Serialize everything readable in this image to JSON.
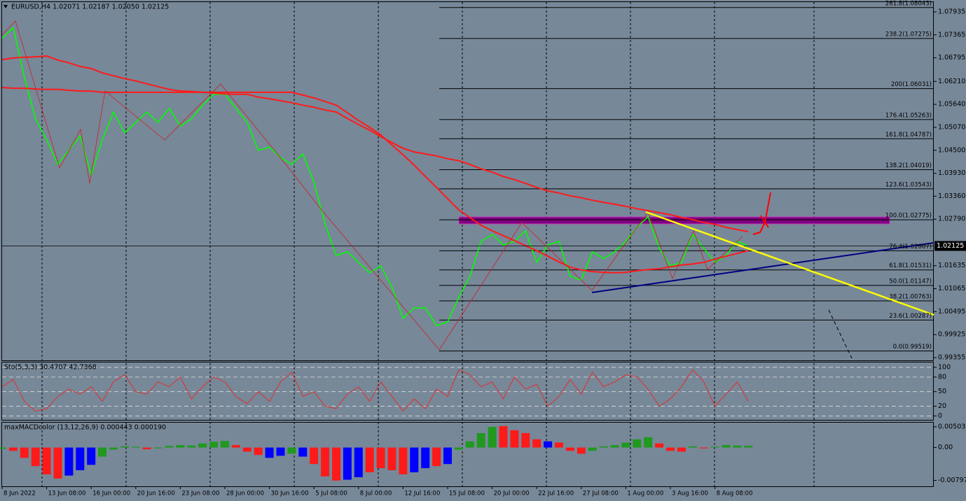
{
  "chart_data": [
    {
      "type": "line",
      "title": "EURUSD,H4  1.02071 1.02187 1.02050 1.02125",
      "categories": [
        "8 Jun 2022",
        null,
        null,
        null,
        "13 Jun 08:00",
        null,
        null,
        null,
        "16 Jun 00:00",
        null,
        null,
        null,
        "20 Jun 16:00",
        null,
        null,
        null,
        "23 Jun 08:00",
        null,
        null,
        null,
        "28 Jun 00:00",
        null,
        null,
        null,
        "30 Jun 16:00",
        null,
        null,
        null,
        "5 Jul 08:00",
        null,
        null,
        null,
        "8 Jul 00:00",
        null,
        null,
        null,
        "12 Jul 16:00",
        null,
        null,
        null,
        "15 Jul 08:00",
        null,
        null,
        null,
        "20 Jul 00:00",
        null,
        null,
        null,
        "22 Jul 16:00",
        null,
        null,
        null,
        "27 Jul 08:00",
        null,
        null,
        null,
        "1 Aug 00:00",
        null,
        null,
        null,
        "3 Aug 16:00",
        null,
        null,
        null,
        "8 Aug 08:00",
        null,
        null,
        null
      ],
      "series": [
        {
          "color": "#00ff00",
          "values": [
            1.0728,
            1.0754,
            1.0632,
            1.0528,
            1.0476,
            1.0415,
            1.045,
            1.0485,
            1.0389,
            1.0476,
            1.0545,
            1.0493,
            1.0519,
            1.0545,
            1.0519,
            1.0554,
            1.051,
            1.0528,
            1.0562,
            1.0589,
            1.0589,
            1.0554,
            1.0519,
            1.045,
            1.0458,
            1.0432,
            1.0415,
            1.0441,
            1.0371,
            1.0267,
            1.0189,
            1.0198,
            1.0172,
            1.0146,
            1.0163,
            1.0111,
            1.0033,
            1.0059,
            1.0059,
            1.0015,
            1.0024,
            1.0085,
            1.0137,
            1.0224,
            1.0241,
            1.0215,
            1.0224,
            1.025,
            1.0172,
            1.0215,
            1.0224,
            1.0137,
            1.0128,
            1.0198,
            1.0181,
            1.0198,
            1.0224,
            1.0259,
            1.0285,
            1.0207,
            1.0163,
            1.0172,
            1.0241,
            1.0207,
            1.0172,
            1.0189,
            1.0224,
            1.0212
          ]
        },
        {
          "color": "#ff1a1a",
          "values": [
            1.0675,
            1.0679,
            1.0681,
            1.0682,
            1.0684,
            1.0674,
            1.0667,
            1.0658,
            1.0653,
            1.0642,
            1.0635,
            1.0628,
            1.0622,
            1.0615,
            1.0608,
            1.0601,
            1.0597,
            1.0596,
            1.0594,
            1.0592,
            1.059,
            1.0589,
            1.0589,
            1.0582,
            1.0578,
            1.0573,
            1.0568,
            1.0562,
            1.0557,
            1.055,
            1.0545,
            1.0529,
            1.0514,
            1.05,
            1.0484,
            1.0469,
            1.0455,
            1.0446,
            1.0441,
            1.0436,
            1.0429,
            1.0424,
            1.0415,
            1.0404,
            1.0396,
            1.0385,
            1.0377,
            1.0368,
            1.0358,
            1.0349,
            1.0344,
            1.0337,
            1.0332,
            1.0326,
            1.0321,
            1.0316,
            1.0311,
            1.0305,
            1.03,
            1.0295,
            1.029,
            1.0283,
            1.0278,
            1.0271,
            1.0266,
            1.0259,
            1.0253,
            1.0248
          ]
        },
        {
          "color": "#ff1a1a",
          "values": [
            1.0606,
            1.0604,
            1.0604,
            1.0602,
            1.0601,
            1.0601,
            1.0599,
            1.0597,
            1.0597,
            1.0594,
            1.0594,
            1.0594,
            1.0594,
            1.0594,
            1.0594,
            1.0594,
            1.0594,
            1.0594,
            1.0594,
            1.0594,
            1.0594,
            1.0594,
            1.0594,
            1.0594,
            1.0594,
            1.0594,
            1.0594,
            1.0587,
            1.058,
            1.0571,
            1.0562,
            1.0543,
            1.0524,
            1.0507,
            1.0488,
            1.0463,
            1.0439,
            1.0413,
            1.0385,
            1.0358,
            1.033,
            1.0302,
            1.0283,
            1.0264,
            1.025,
            1.0238,
            1.0226,
            1.0213,
            1.0201,
            1.0187,
            1.0173,
            1.016,
            1.0153,
            1.0149,
            1.0147,
            1.0146,
            1.0147,
            1.0151,
            1.0154,
            1.0156,
            1.0161,
            1.0165,
            1.0168,
            1.0172,
            1.018,
            1.0187,
            1.0194,
            1.0201
          ]
        }
      ],
      "ylim": [
        0.99286,
        1.08178
      ],
      "yticks": [
        1.07935,
        1.07365,
        1.06795,
        {
          "value": 1.0621,
          "label": "1.06210"
        },
        {
          "value": 1.0564,
          "label": "1.05640"
        },
        {
          "value": 1.0507,
          "label": "1.05070"
        },
        {
          "value": 1.045,
          "label": "1.04500"
        },
        {
          "value": 1.0393,
          "label": "1.03930"
        },
        {
          "value": 1.0336,
          "label": "1.03360"
        },
        {
          "value": 1.0279,
          "label": "1.02790"
        },
        1.01635,
        1.01065,
        1.00495,
        0.99925,
        0.99355
      ],
      "grid": false,
      "current_price": 1.02125,
      "fib_levels": [
        {
          "value": 1.08043,
          "label": "261.8(1.08043)"
        },
        {
          "value": 1.07275,
          "label": "238.2(1.07275)"
        },
        {
          "value": 1.06031,
          "label": "200(1.06031)"
        },
        {
          "value": 1.05263,
          "label": "176.4(1.05263)"
        },
        {
          "value": 1.04787,
          "label": "161.8(1.04787)"
        },
        {
          "value": 1.04019,
          "label": "138.2(1.04019)"
        },
        {
          "value": 1.03543,
          "label": "123.6(1.03543)"
        },
        {
          "value": 1.02775,
          "label": "100.0(1.02775)"
        },
        {
          "value": 1.02007,
          "label": "76.4(1.02007)"
        },
        {
          "value": 1.01531,
          "label": "61.8(1.01531)"
        },
        {
          "value": 1.01147,
          "label": "50.0(1.01147)"
        },
        {
          "value": 1.00763,
          "label": "38.2(1.00763)"
        },
        {
          "value": 1.00287,
          "label": "23.6(1.00287)"
        },
        {
          "value": 0.99519,
          "label": "0.0(0.99519)"
        }
      ]
    },
    {
      "type": "line",
      "title": "Sto(5,3,3) 30.4707 42.7368",
      "color": "#e0302b",
      "values": [
        60,
        75,
        30,
        10,
        15,
        40,
        55,
        45,
        60,
        30,
        70,
        85,
        50,
        45,
        70,
        60,
        80,
        35,
        60,
        80,
        70,
        40,
        25,
        50,
        30,
        70,
        90,
        40,
        50,
        20,
        15,
        45,
        60,
        30,
        70,
        40,
        10,
        35,
        15,
        55,
        40,
        95,
        85,
        60,
        70,
        35,
        80,
        55,
        65,
        20,
        40,
        75,
        45,
        90,
        60,
        70,
        85,
        80,
        55,
        20,
        35,
        60,
        95,
        70,
        20,
        45,
        70,
        30
      ],
      "ylim": [
        -8,
        110
      ],
      "yticks": [
        100,
        80,
        50,
        20,
        0
      ],
      "grid": true
    },
    {
      "type": "bar",
      "title": "maxMACDcolor (13,12,26,9) 0.000443 0.000190",
      "values": [
        -0.0003,
        -0.0008,
        -0.0025,
        -0.0045,
        -0.0065,
        -0.0075,
        -0.0068,
        -0.0055,
        -0.0042,
        -0.0022,
        -0.0005,
        0.0003,
        0.0002,
        -0.0004,
        -0.0002,
        0.0004,
        0.0006,
        0.0005,
        0.001,
        0.0014,
        0.0016,
        0.0006,
        -0.001,
        -0.0018,
        -0.0025,
        -0.002,
        -0.0015,
        -0.0022,
        -0.004,
        -0.007,
        -0.008,
        -0.0078,
        -0.0072,
        -0.006,
        -0.005,
        -0.0055,
        -0.0065,
        -0.006,
        -0.005,
        -0.0045,
        -0.004,
        -0.0005,
        0.0015,
        0.0035,
        0.005,
        0.0052,
        0.0042,
        0.0035,
        0.002,
        0.0015,
        0.0012,
        -0.0008,
        -0.0015,
        -0.0008,
        0.0003,
        0.0006,
        0.0012,
        0.002,
        0.0025,
        0.001,
        -0.0008,
        -0.001,
        0.0003,
        -0.0002,
        0.0002,
        0.0006,
        0.0005,
        0.000443
      ],
      "colors": [
        "#1f9a1f",
        "#ff1a1a",
        "#ff1a1a",
        "#ff1a1a",
        "#ff1a1a",
        "#ff1a1a",
        "#0000ff",
        "#0000ff",
        "#0000ff",
        "#1f9a1f",
        "#1f9a1f",
        "#1f9a1f",
        "#1f9a1f",
        "#ff1a1a",
        "#1f9a1f",
        "#1f9a1f",
        "#1f9a1f",
        "#1f9a1f",
        "#1f9a1f",
        "#1f9a1f",
        "#1f9a1f",
        "#ff1a1a",
        "#ff1a1a",
        "#ff1a1a",
        "#0000ff",
        "#0000ff",
        "#1f9a1f",
        "#0000ff",
        "#ff1a1a",
        "#ff1a1a",
        "#ff1a1a",
        "#0000ff",
        "#0000ff",
        "#ff1a1a",
        "#ff1a1a",
        "#ff1a1a",
        "#ff1a1a",
        "#0000ff",
        "#0000ff",
        "#ff1a1a",
        "#0000ff",
        "#1f9a1f",
        "#1f9a1f",
        "#1f9a1f",
        "#1f9a1f",
        "#ff1a1a",
        "#ff1a1a",
        "#ff1a1a",
        "#ff1a1a",
        "#0000ff",
        "#ff1a1a",
        "#ff1a1a",
        "#ff1a1a",
        "#1f9a1f",
        "#1f9a1f",
        "#1f9a1f",
        "#1f9a1f",
        "#1f9a1f",
        "#1f9a1f",
        "#ff1a1a",
        "#ff1a1a",
        "#ff1a1a",
        "#1f9a1f",
        "#ff1a1a",
        "#1f9a1f",
        "#1f9a1f",
        "#1f9a1f",
        "#1f9a1f"
      ],
      "ylim": [
        -0.0094,
        0.00604
      ],
      "yticks": [
        0.005037,
        {
          "value": 0,
          "label": "0.00"
        },
        -0.00797
      ],
      "grid": false
    }
  ]
}
